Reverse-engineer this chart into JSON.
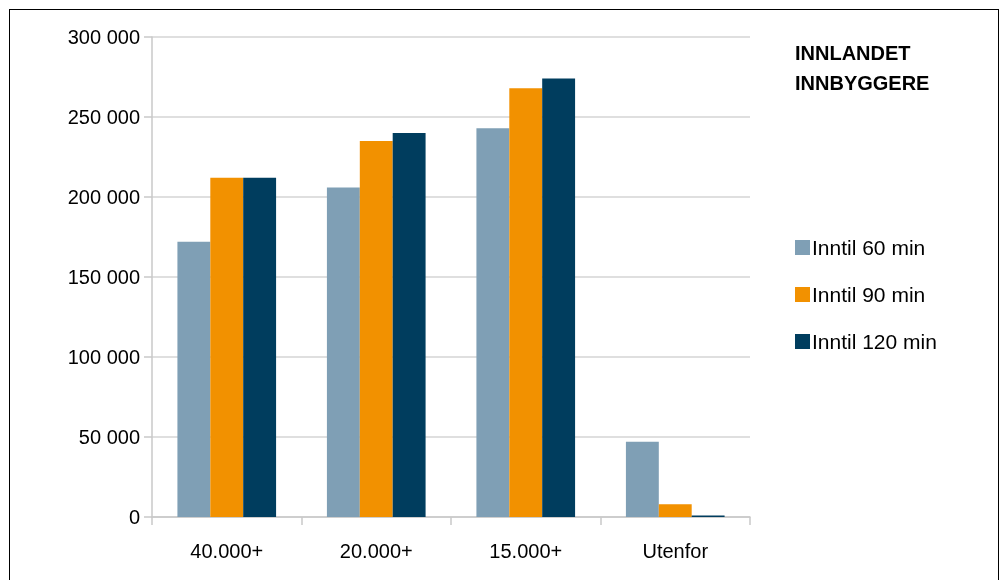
{
  "chart_data": {
    "type": "bar",
    "title": "INNLANDET INNBYGGERE",
    "categories": [
      "40.000+",
      "20.000+",
      "15.000+",
      "Utenfor"
    ],
    "series": [
      {
        "name": "Inntil 60 min",
        "color": "#7f9fb5",
        "values": [
          172000,
          206000,
          243000,
          47000
        ]
      },
      {
        "name": "Inntil 90 min",
        "color": "#f29100",
        "values": [
          212000,
          235000,
          268000,
          8000
        ]
      },
      {
        "name": "Inntil 120 min",
        "color": "#003d5e",
        "values": [
          212000,
          240000,
          274000,
          1000
        ]
      }
    ],
    "ylim": [
      0,
      300000
    ],
    "yticks": [
      {
        "value": 0,
        "label": "0"
      },
      {
        "value": 50000,
        "label": "50 000"
      },
      {
        "value": 100000,
        "label": "100 000"
      },
      {
        "value": 150000,
        "label": "150 000"
      },
      {
        "value": 200000,
        "label": "200 000"
      },
      {
        "value": 250000,
        "label": "250 000"
      },
      {
        "value": 300000,
        "label": "300 000"
      }
    ],
    "grid": "y",
    "legend": "right"
  }
}
